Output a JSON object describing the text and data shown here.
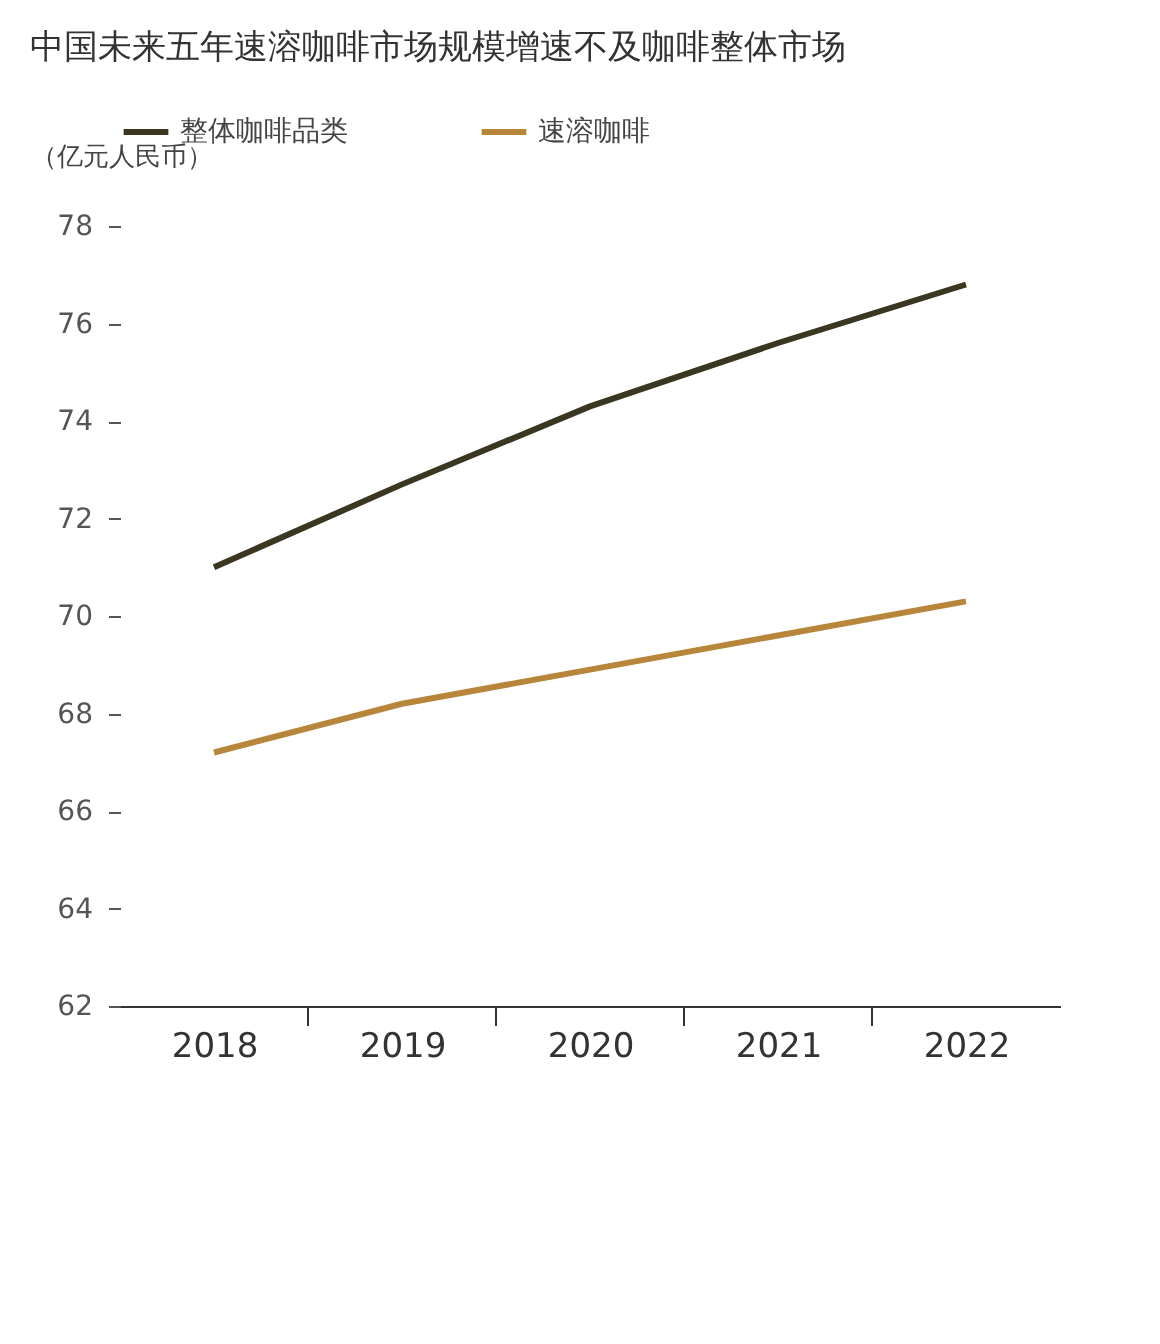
{
  "chart_data": {
    "type": "line",
    "title": "中国未来五年速溶咖啡市场规模增速不及咖啡整体市场",
    "ylabel": "（亿元人民币）",
    "categories": [
      "2018",
      "2019",
      "2020",
      "2021",
      "2022"
    ],
    "series": [
      {
        "name": "整体咖啡品类",
        "color": "#3a3620",
        "values": [
          71.0,
          72.7,
          74.3,
          75.6,
          76.8
        ]
      },
      {
        "name": "速溶咖啡",
        "color": "#b8863b",
        "values": [
          67.2,
          68.2,
          68.9,
          69.6,
          70.3
        ]
      }
    ],
    "ylim": [
      62,
      78
    ],
    "yticks": [
      62,
      64,
      66,
      68,
      70,
      72,
      74,
      76,
      78
    ],
    "grid": false,
    "legend": "top",
    "marker": "none",
    "line_style": "solid"
  }
}
